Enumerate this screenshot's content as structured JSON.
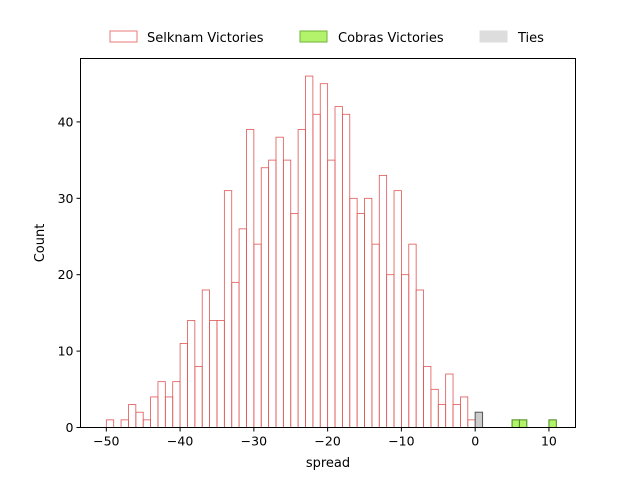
{
  "chart_data": {
    "type": "bar",
    "xlabel": "spread",
    "ylabel": "Count",
    "xlim": [
      -53.5,
      13.6
    ],
    "ylim": [
      0,
      48.3
    ],
    "xticks": [
      -50,
      -40,
      -30,
      -20,
      -10,
      0,
      10
    ],
    "yticks": [
      0,
      10,
      20,
      30,
      40
    ],
    "bin_width": 1,
    "grid": false,
    "legend_position": "top, above plot",
    "series": [
      {
        "name": "Selknam Victories",
        "style": "outline",
        "edge_color": "#e05555",
        "fill_color": "none",
        "bins": [
          [
            -50,
            1
          ],
          [
            -48,
            1
          ],
          [
            -47,
            3
          ],
          [
            -46,
            2
          ],
          [
            -45,
            1
          ],
          [
            -44,
            4
          ],
          [
            -43,
            6
          ],
          [
            -42,
            4
          ],
          [
            -41,
            6
          ],
          [
            -40,
            11
          ],
          [
            -39,
            14
          ],
          [
            -38,
            8
          ],
          [
            -37,
            18
          ],
          [
            -36,
            14
          ],
          [
            -35,
            14
          ],
          [
            -34,
            31
          ],
          [
            -33,
            19
          ],
          [
            -32,
            26
          ],
          [
            -31,
            39
          ],
          [
            -30,
            24
          ],
          [
            -29,
            34
          ],
          [
            -28,
            35
          ],
          [
            -27,
            38
          ],
          [
            -26,
            35
          ],
          [
            -25,
            28
          ],
          [
            -24,
            39
          ],
          [
            -23,
            46
          ],
          [
            -22,
            41
          ],
          [
            -21,
            45
          ],
          [
            -20,
            35
          ],
          [
            -19,
            42
          ],
          [
            -18,
            41
          ],
          [
            -17,
            30
          ],
          [
            -16,
            28
          ],
          [
            -15,
            30
          ],
          [
            -14,
            24
          ],
          [
            -13,
            33
          ],
          [
            -12,
            20
          ],
          [
            -11,
            31
          ],
          [
            -10,
            20
          ],
          [
            -9,
            24
          ],
          [
            -8,
            18
          ],
          [
            -7,
            8
          ],
          [
            -6,
            5
          ],
          [
            -5,
            3
          ],
          [
            -4,
            7
          ],
          [
            -3,
            3
          ],
          [
            -2,
            4
          ],
          [
            -1,
            1
          ]
        ]
      },
      {
        "name": "Cobras Victories",
        "style": "filled",
        "edge_color": "#4a8a1a",
        "fill_color": "#b3f26b",
        "bins": [
          [
            5,
            1
          ],
          [
            6,
            1
          ],
          [
            10,
            1
          ]
        ]
      },
      {
        "name": "Ties",
        "style": "filled",
        "edge_color": "#555555",
        "fill_color": "#cccccc",
        "bins": [
          [
            0,
            2
          ]
        ]
      }
    ]
  }
}
